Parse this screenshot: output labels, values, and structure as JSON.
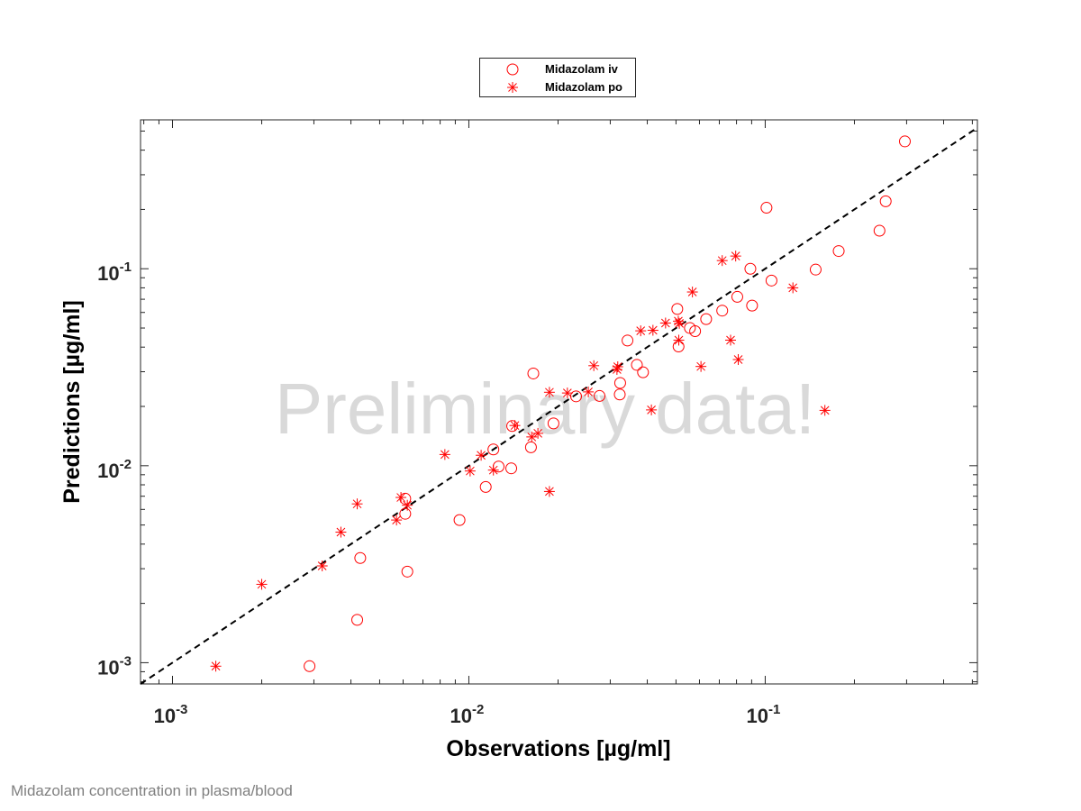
{
  "chart_data": {
    "type": "scatter",
    "xlabel": "Observations [µg/ml]",
    "ylabel": "Predictions [µg/ml]",
    "xscale": "log",
    "yscale": "log",
    "xlim": [
      0.00078,
      0.52
    ],
    "ylim": [
      0.00078,
      0.57
    ],
    "x_ticks": [
      0.001,
      0.01,
      0.1
    ],
    "y_ticks": [
      0.001,
      0.01,
      0.1
    ],
    "x_tick_labels": [
      {
        "base": "10",
        "exp": "-3"
      },
      {
        "base": "10",
        "exp": "-2"
      },
      {
        "base": "10",
        "exp": "-1"
      }
    ],
    "y_tick_labels": [
      {
        "base": "10",
        "exp": "-3"
      },
      {
        "base": "10",
        "exp": "-2"
      },
      {
        "base": "10",
        "exp": "-1"
      }
    ],
    "grid": false,
    "watermark": "Preliminary data!",
    "identity_line": {
      "style": "dashed",
      "color": "#000000"
    },
    "legend": {
      "position": "top-center outside"
    },
    "series": [
      {
        "name": "Midazolam iv",
        "marker": "circle",
        "color": "#ff0000",
        "points": [
          [
            0.0029,
            0.00096
          ],
          [
            0.0042,
            0.00165
          ],
          [
            0.0043,
            0.0034
          ],
          [
            0.0061,
            0.0057
          ],
          [
            0.0061,
            0.0068
          ],
          [
            0.0062,
            0.0029
          ],
          [
            0.0093,
            0.0053
          ],
          [
            0.0114,
            0.0078
          ],
          [
            0.0121,
            0.0121
          ],
          [
            0.0126,
            0.0099
          ],
          [
            0.0139,
            0.0097
          ],
          [
            0.014,
            0.0159
          ],
          [
            0.0162,
            0.0124
          ],
          [
            0.0165,
            0.0294
          ],
          [
            0.0193,
            0.0164
          ],
          [
            0.023,
            0.0225
          ],
          [
            0.0276,
            0.0226
          ],
          [
            0.0323,
            0.023
          ],
          [
            0.0324,
            0.0263
          ],
          [
            0.0343,
            0.0432
          ],
          [
            0.0369,
            0.0325
          ],
          [
            0.0387,
            0.0298
          ],
          [
            0.0505,
            0.0625
          ],
          [
            0.051,
            0.0403
          ],
          [
            0.0557,
            0.05
          ],
          [
            0.058,
            0.0482
          ],
          [
            0.0632,
            0.0555
          ],
          [
            0.0716,
            0.0613
          ],
          [
            0.0805,
            0.072
          ],
          [
            0.0891,
            0.1
          ],
          [
            0.0903,
            0.065
          ],
          [
            0.101,
            0.204
          ],
          [
            0.105,
            0.0871
          ],
          [
            0.148,
            0.099
          ],
          [
            0.177,
            0.123
          ],
          [
            0.243,
            0.156
          ],
          [
            0.255,
            0.22
          ],
          [
            0.296,
            0.443
          ]
        ]
      },
      {
        "name": "Midazolam po",
        "marker": "asterisk",
        "color": "#ff0000",
        "points": [
          [
            0.0014,
            0.00096
          ],
          [
            0.002,
            0.0025
          ],
          [
            0.0032,
            0.0031
          ],
          [
            0.0037,
            0.0046
          ],
          [
            0.0042,
            0.0064
          ],
          [
            0.0057,
            0.0053
          ],
          [
            0.0059,
            0.0069
          ],
          [
            0.0062,
            0.0063
          ],
          [
            0.0083,
            0.0114
          ],
          [
            0.0101,
            0.0094
          ],
          [
            0.011,
            0.0113
          ],
          [
            0.0121,
            0.0095
          ],
          [
            0.0143,
            0.016
          ],
          [
            0.0163,
            0.014
          ],
          [
            0.0171,
            0.0146
          ],
          [
            0.0187,
            0.0074
          ],
          [
            0.0187,
            0.0236
          ],
          [
            0.0215,
            0.0234
          ],
          [
            0.0253,
            0.0237
          ],
          [
            0.0264,
            0.0322
          ],
          [
            0.0316,
            0.0308
          ],
          [
            0.0318,
            0.0318
          ],
          [
            0.038,
            0.0484
          ],
          [
            0.0413,
            0.0192
          ],
          [
            0.0418,
            0.0487
          ],
          [
            0.0461,
            0.053
          ],
          [
            0.0509,
            0.0542
          ],
          [
            0.0511,
            0.0434
          ],
          [
            0.0513,
            0.0528
          ],
          [
            0.0568,
            0.0762
          ],
          [
            0.0607,
            0.0319
          ],
          [
            0.0716,
            0.11
          ],
          [
            0.0764,
            0.0434
          ],
          [
            0.0795,
            0.116
          ],
          [
            0.0811,
            0.0346
          ],
          [
            0.124,
            0.08
          ],
          [
            0.159,
            0.0191
          ]
        ]
      }
    ]
  },
  "caption": "Midazolam concentration in plasma/blood"
}
